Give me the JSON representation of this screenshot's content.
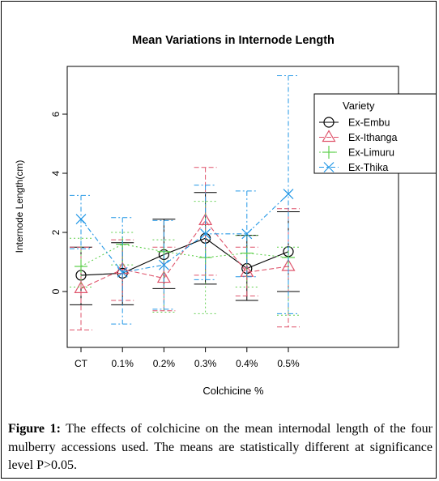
{
  "chart_data": {
    "type": "line",
    "title": "Mean Variations in Internode Length",
    "xlabel": "Colchicine %",
    "ylabel": "Internode Length(cm)",
    "categories": [
      "CT",
      "0.1%",
      "0.2%",
      "0.3%",
      "0.4%",
      "0.5%"
    ],
    "yticks": [
      "0",
      "2",
      "4",
      "6"
    ],
    "ylim": [
      -1.6,
      7.5
    ],
    "legend": {
      "title": "Variety",
      "position": "right"
    },
    "series": [
      {
        "name": "Ex-Embu",
        "color": "#000000",
        "marker": "circle",
        "values": [
          0.55,
          0.62,
          1.25,
          1.8,
          0.78,
          1.35
        ],
        "upper": [
          1.5,
          1.65,
          2.45,
          3.35,
          1.9,
          2.7
        ],
        "lower": [
          -0.45,
          -0.45,
          0.1,
          0.25,
          -0.3,
          0.0
        ]
      },
      {
        "name": "Ex-Ithanga",
        "color": "#df536b",
        "marker": "triangle",
        "values": [
          0.1,
          0.75,
          0.45,
          2.4,
          0.65,
          0.85
        ],
        "upper": [
          1.5,
          1.75,
          1.5,
          4.2,
          1.5,
          2.8
        ],
        "lower": [
          -1.3,
          -0.3,
          -0.65,
          0.55,
          -0.15,
          -1.2
        ]
      },
      {
        "name": "Ex-Limuru",
        "color": "#61d04f",
        "marker": "plus",
        "values": [
          0.85,
          1.6,
          1.35,
          1.15,
          1.3,
          1.15
        ],
        "upper": [
          1.8,
          2.0,
          1.75,
          3.05,
          1.9,
          1.5
        ],
        "lower": [
          0.15,
          0.9,
          -0.7,
          -0.75,
          0.15,
          -0.8
        ]
      },
      {
        "name": "Ex-Thika",
        "color": "#2297e6",
        "marker": "x",
        "values": [
          2.45,
          0.65,
          0.9,
          1.95,
          1.95,
          3.3
        ],
        "upper": [
          3.25,
          2.5,
          2.4,
          3.6,
          3.4,
          7.3
        ],
        "lower": [
          1.45,
          -1.1,
          -0.6,
          0.4,
          0.5,
          -0.75
        ]
      }
    ]
  },
  "caption": {
    "label": "Figure 1:",
    "text": " The effects of colchicine on the mean internodal length of the four mulberry accessions used. The means are statistically different at significance level P>0.05."
  }
}
